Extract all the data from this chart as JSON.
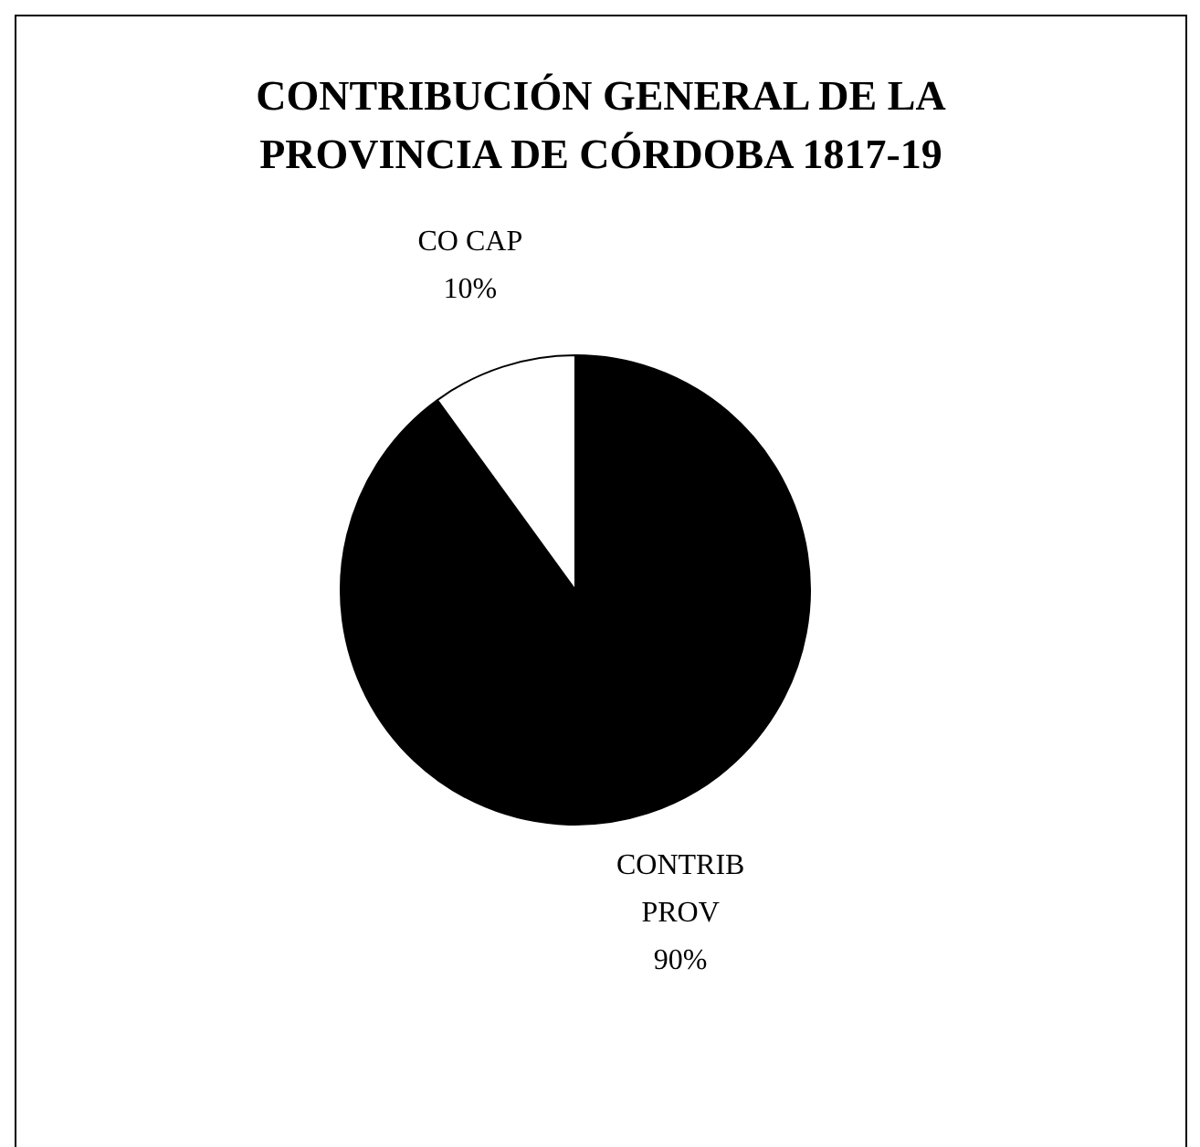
{
  "chart_data": {
    "type": "pie",
    "title": "CONTRIBUCIÓN GENERAL DE LA PROVINCIA DE CÓRDOBA 1817-19",
    "categories": [
      "CONTRIB PROV",
      "CO CAP"
    ],
    "values": [
      90,
      10
    ],
    "colors": [
      "#000000",
      "#ffffff"
    ],
    "value_labels": [
      "90%",
      "10%"
    ],
    "legend": false
  }
}
